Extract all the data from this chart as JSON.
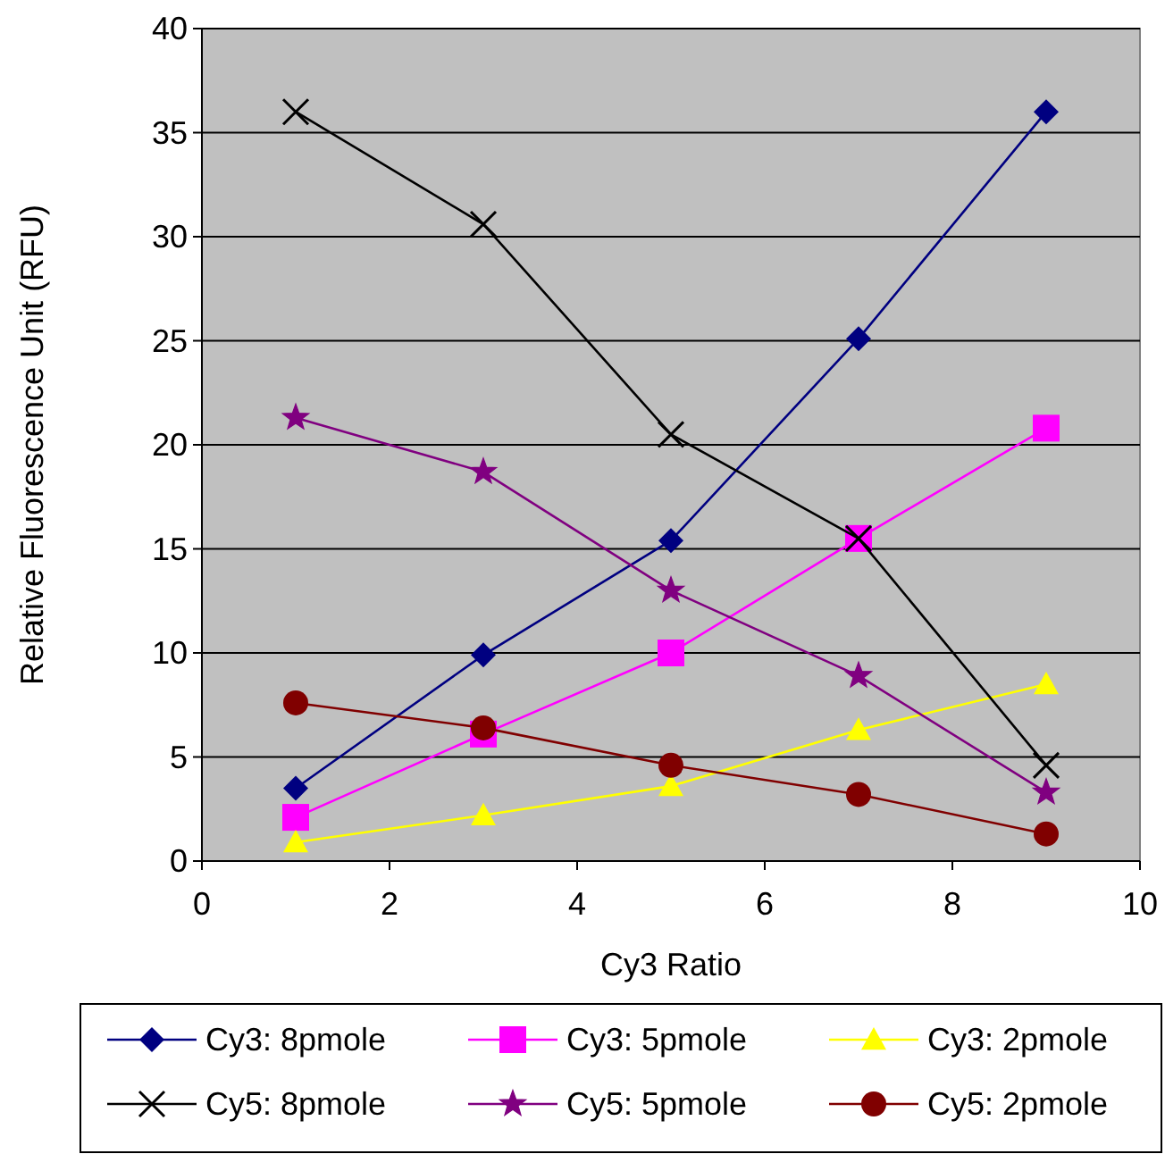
{
  "chart_data": {
    "type": "line",
    "xlabel": "Cy3 Ratio",
    "ylabel": "Relative  Fluorescence  Unit  (RFU)",
    "x": [
      1,
      3,
      5,
      7,
      9
    ],
    "xlim": [
      0,
      10
    ],
    "xticks": [
      0,
      2,
      4,
      6,
      8,
      10
    ],
    "ylim": [
      0,
      40
    ],
    "yticks": [
      0,
      5,
      10,
      15,
      20,
      25,
      30,
      35,
      40
    ],
    "grid": "y",
    "legend": "bottom",
    "series": [
      {
        "name": "Cy3: 8pmole",
        "color": "#000080",
        "marker": "diamond",
        "values": [
          3.5,
          9.9,
          15.4,
          25.1,
          36.0
        ]
      },
      {
        "name": "Cy3: 5pmole",
        "color": "#ff00ff",
        "marker": "square",
        "values": [
          2.1,
          6.1,
          10.0,
          15.5,
          20.8
        ]
      },
      {
        "name": "Cy3: 2pmole",
        "color": "#ffff00",
        "marker": "triangle",
        "values": [
          0.9,
          2.2,
          3.6,
          6.3,
          8.5
        ]
      },
      {
        "name": "Cy5: 8pmole",
        "color": "#000000",
        "marker": "cross",
        "values": [
          36.0,
          30.6,
          20.5,
          15.5,
          4.6
        ]
      },
      {
        "name": "Cy5: 5pmole",
        "color": "#800080",
        "marker": "star",
        "values": [
          21.3,
          18.7,
          13.0,
          8.9,
          3.3
        ]
      },
      {
        "name": "Cy5: 2pmole",
        "color": "#800000",
        "marker": "circle",
        "values": [
          7.6,
          6.4,
          4.6,
          3.2,
          1.3
        ]
      }
    ]
  }
}
